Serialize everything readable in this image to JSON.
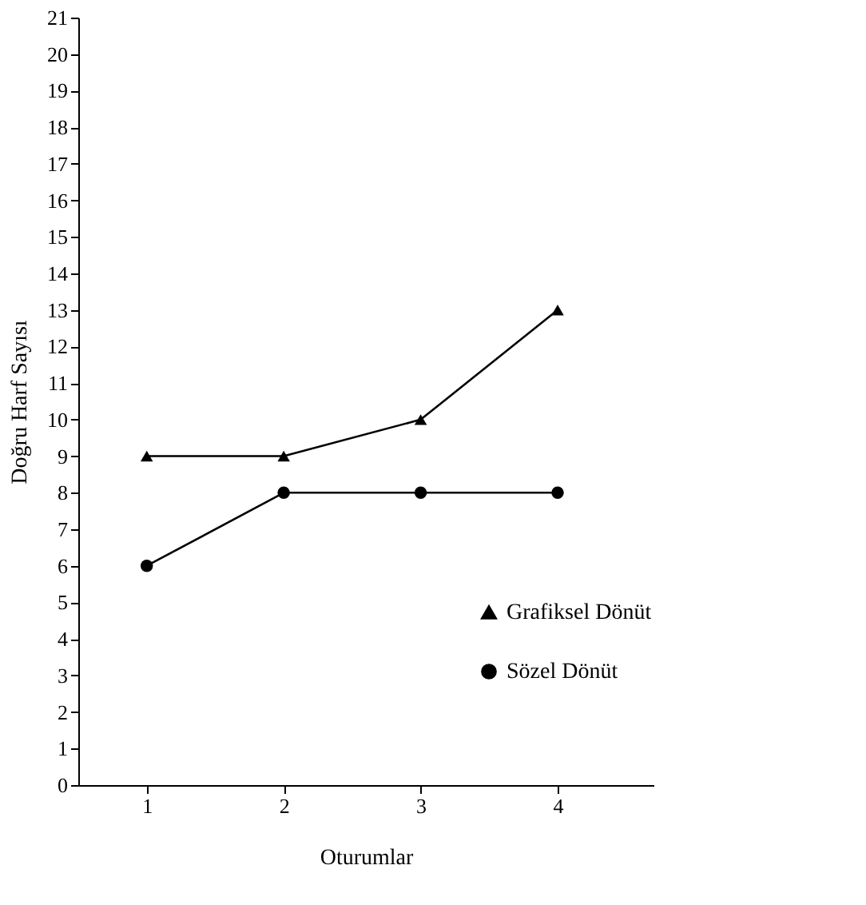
{
  "chart_data": {
    "type": "line",
    "xlabel": "Oturumlar",
    "ylabel": "Doğru Harf Sayısı",
    "x": [
      1,
      2,
      3,
      4
    ],
    "xlim": [
      0.5,
      4.7
    ],
    "xticks": [
      1,
      2,
      3,
      4
    ],
    "ylim": [
      0,
      21
    ],
    "yticks": [
      0,
      1,
      2,
      3,
      4,
      5,
      6,
      7,
      8,
      9,
      10,
      11,
      12,
      13,
      14,
      15,
      16,
      17,
      18,
      19,
      20,
      21
    ],
    "grid": false,
    "legend": "right",
    "line_style": "solid",
    "series": [
      {
        "name": "Grafiksel Dönüt",
        "color": "#000000",
        "marker": "triangle",
        "values": [
          9,
          9,
          10,
          13
        ]
      },
      {
        "name": "Sözel Dönüt",
        "color": "#000000",
        "marker": "circle",
        "values": [
          6,
          8,
          8,
          8
        ]
      }
    ]
  }
}
